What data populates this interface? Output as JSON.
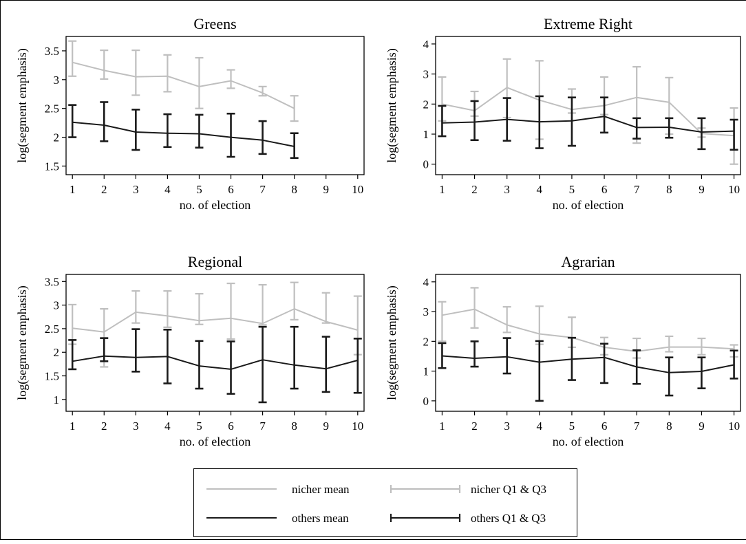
{
  "colors": {
    "niche": "#bfbfbf",
    "others": "#1a1a1a",
    "frame": "#000000"
  },
  "legend": {
    "items": [
      {
        "label": "nicher mean",
        "style": "line",
        "color": "#bfbfbf"
      },
      {
        "label": "nicher Q1 & Q3",
        "style": "errorbar",
        "color": "#bfbfbf"
      },
      {
        "label": "others mean",
        "style": "line",
        "color": "#1a1a1a"
      },
      {
        "label": "others Q1 & Q3",
        "style": "errorbar",
        "color": "#1a1a1a"
      }
    ]
  },
  "chart_data": [
    {
      "type": "line",
      "title": "Greens",
      "xlabel": "no. of election",
      "ylabel": "log(segment emphasis)",
      "xlim": [
        0.8,
        10.2
      ],
      "ylim": [
        1.35,
        3.75
      ],
      "xticks": [
        1,
        2,
        3,
        4,
        5,
        6,
        7,
        8,
        9,
        10
      ],
      "yticks": [
        1.5,
        2,
        2.5,
        3,
        3.5
      ],
      "ytick_labels": [
        "1.5",
        "2",
        "2.5",
        "3",
        "3.5"
      ],
      "grid": false,
      "series": [
        {
          "name": "nicher mean",
          "x": [
            1,
            2,
            3,
            4,
            5,
            6,
            7,
            8
          ],
          "values": [
            3.3,
            3.16,
            3.05,
            3.06,
            2.88,
            2.98,
            2.77,
            2.5
          ],
          "q1": [
            3.06,
            3.01,
            2.73,
            2.79,
            2.5,
            2.85,
            2.72,
            2.28
          ],
          "q3": [
            3.67,
            3.51,
            3.51,
            3.43,
            3.38,
            3.17,
            2.88,
            2.72
          ]
        },
        {
          "name": "others mean",
          "x": [
            1,
            2,
            3,
            4,
            5,
            6,
            7,
            8
          ],
          "values": [
            2.26,
            2.21,
            2.09,
            2.07,
            2.06,
            2.0,
            1.95,
            1.84
          ],
          "q1": [
            2.0,
            1.93,
            1.78,
            1.83,
            1.82,
            1.66,
            1.71,
            1.64
          ],
          "q3": [
            2.56,
            2.61,
            2.48,
            2.4,
            2.39,
            2.41,
            2.28,
            2.07
          ]
        }
      ]
    },
    {
      "type": "line",
      "title": "Extreme Right",
      "xlabel": "no. of election",
      "ylabel": "log(segment emphasis)",
      "xlim": [
        0.8,
        10.2
      ],
      "ylim": [
        -0.35,
        4.25
      ],
      "xticks": [
        1,
        2,
        3,
        4,
        5,
        6,
        7,
        8,
        9,
        10
      ],
      "yticks": [
        0,
        1,
        2,
        3,
        4
      ],
      "ytick_labels": [
        "0",
        "1",
        "2",
        "3",
        "4"
      ],
      "grid": false,
      "series": [
        {
          "name": "nicher mean",
          "x": [
            1,
            2,
            3,
            4,
            5,
            6,
            7,
            8,
            9,
            10
          ],
          "values": [
            2.0,
            1.78,
            2.55,
            2.13,
            1.82,
            1.95,
            2.22,
            2.06,
            1.02,
            0.95
          ],
          "q1": [
            1.44,
            1.6,
            1.55,
            0.83,
            1.7,
            1.65,
            0.7,
            1.0,
            0.9,
            0.0
          ],
          "q3": [
            2.9,
            2.42,
            3.5,
            3.44,
            2.5,
            2.9,
            3.24,
            2.88,
            1.2,
            1.87
          ]
        },
        {
          "name": "others mean",
          "x": [
            1,
            2,
            3,
            4,
            5,
            6,
            7,
            8,
            9,
            10
          ],
          "values": [
            1.37,
            1.4,
            1.49,
            1.41,
            1.44,
            1.59,
            1.22,
            1.23,
            1.07,
            1.1
          ],
          "q1": [
            0.93,
            0.8,
            0.78,
            0.53,
            0.61,
            1.05,
            0.85,
            0.88,
            0.5,
            0.48
          ],
          "q3": [
            1.94,
            2.1,
            2.2,
            2.26,
            2.22,
            2.22,
            1.53,
            1.53,
            1.53,
            1.48
          ]
        }
      ]
    },
    {
      "type": "line",
      "title": "Regional",
      "xlabel": "no. of election",
      "ylabel": "log(segment emphasis)",
      "xlim": [
        0.8,
        10.2
      ],
      "ylim": [
        0.75,
        3.65
      ],
      "xticks": [
        1,
        2,
        3,
        4,
        5,
        6,
        7,
        8,
        9,
        10
      ],
      "yticks": [
        1,
        1.5,
        2,
        2.5,
        3,
        3.5
      ],
      "ytick_labels": [
        "1",
        "1.5",
        "2",
        "2.5",
        "3",
        "3.5"
      ],
      "grid": false,
      "series": [
        {
          "name": "nicher mean",
          "x": [
            1,
            2,
            3,
            4,
            5,
            6,
            7,
            8,
            9,
            10
          ],
          "values": [
            2.51,
            2.43,
            2.85,
            2.77,
            2.67,
            2.72,
            2.61,
            2.92,
            2.65,
            2.47
          ],
          "q1": [
            2.17,
            1.69,
            2.62,
            2.53,
            2.59,
            2.28,
            2.58,
            2.69,
            2.62,
            1.95
          ],
          "q3": [
            3.01,
            2.92,
            3.3,
            3.3,
            3.24,
            3.46,
            3.43,
            3.48,
            3.26,
            3.19
          ]
        },
        {
          "name": "others mean",
          "x": [
            1,
            2,
            3,
            4,
            5,
            6,
            7,
            8,
            9,
            10
          ],
          "values": [
            1.81,
            1.92,
            1.89,
            1.91,
            1.71,
            1.64,
            1.84,
            1.73,
            1.65,
            1.83
          ],
          "q1": [
            1.64,
            1.81,
            1.59,
            1.34,
            1.23,
            1.12,
            0.94,
            1.23,
            1.16,
            1.14
          ],
          "q3": [
            2.26,
            2.3,
            2.49,
            2.48,
            2.24,
            2.23,
            2.54,
            2.54,
            2.33,
            2.29
          ]
        }
      ]
    },
    {
      "type": "line",
      "title": "Agrarian",
      "xlabel": "no. of election",
      "ylabel": "log(segment emphasis)",
      "xlim": [
        0.8,
        10.2
      ],
      "ylim": [
        -0.35,
        4.25
      ],
      "xticks": [
        1,
        2,
        3,
        4,
        5,
        6,
        7,
        8,
        9,
        10
      ],
      "yticks": [
        0,
        1,
        2,
        3,
        4
      ],
      "ytick_labels": [
        "0",
        "1",
        "2",
        "3",
        "4"
      ],
      "grid": false,
      "series": [
        {
          "name": "nicher mean",
          "x": [
            1,
            2,
            3,
            4,
            5,
            6,
            7,
            8,
            9,
            10
          ],
          "values": [
            2.88,
            3.08,
            2.55,
            2.25,
            2.13,
            1.8,
            1.66,
            1.81,
            1.81,
            1.75
          ],
          "q1": [
            2.0,
            2.45,
            2.3,
            1.9,
            1.8,
            1.55,
            1.44,
            1.65,
            1.55,
            1.48
          ],
          "q3": [
            3.33,
            3.8,
            3.16,
            3.18,
            2.81,
            2.13,
            2.1,
            2.17,
            2.1,
            1.88
          ]
        },
        {
          "name": "others mean",
          "x": [
            1,
            2,
            3,
            4,
            5,
            6,
            7,
            8,
            9,
            10
          ],
          "values": [
            1.51,
            1.43,
            1.48,
            1.3,
            1.4,
            1.46,
            1.14,
            0.95,
            0.99,
            1.21
          ],
          "q1": [
            1.1,
            1.15,
            0.92,
            0.0,
            0.7,
            0.6,
            0.57,
            0.18,
            0.42,
            0.75
          ],
          "q3": [
            1.94,
            2.0,
            2.11,
            2.01,
            2.12,
            1.92,
            1.7,
            1.46,
            1.46,
            1.69
          ]
        }
      ]
    }
  ]
}
